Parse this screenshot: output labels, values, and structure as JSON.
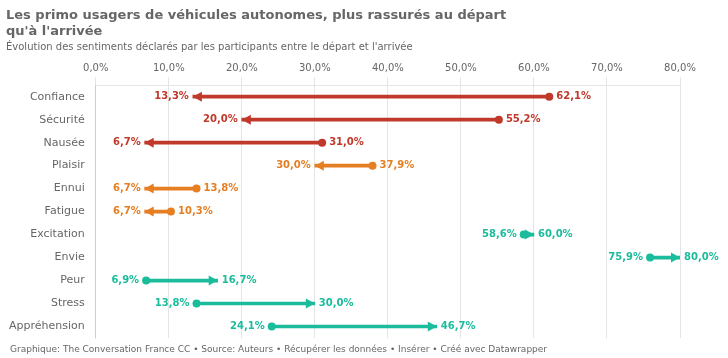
{
  "chart_data": {
    "type": "arrow",
    "orientation": "horizontal",
    "title": [
      "Les primo usagers de véhicules autonomes, plus rassurés au départ",
      "qu'à l'arrivée"
    ],
    "subtitle": "Évolution des sentiments déclarés par les participants entre le départ et l'arrivée",
    "annotations": [
      "Graphique: The Conversation France CC • Source: Auteurs • Récupérer les données • Insérer • Créé avec Datawrapper"
    ],
    "categories": [
      "Confiance",
      "Sécurité",
      "Nausée",
      "Plaisir",
      "Ennui",
      "Fatigue",
      "Excitation",
      "Envie",
      "Peur",
      "Stress",
      "Appréhension"
    ],
    "values": [
      [
        62.1,
        13.3
      ],
      [
        55.2,
        20.0
      ],
      [
        31.0,
        6.7
      ],
      [
        37.9,
        30.0
      ],
      [
        13.8,
        6.7
      ],
      [
        10.3,
        6.7
      ],
      [
        58.6,
        60.0
      ],
      [
        75.9,
        80.0
      ],
      [
        6.9,
        16.7
      ],
      [
        13.8,
        30.0
      ],
      [
        24.1,
        46.7
      ]
    ],
    "value_labels": [
      [
        "62,1%",
        "13,3%"
      ],
      [
        "55,2%",
        "20,0%"
      ],
      [
        "31,0%",
        "6,7%"
      ],
      [
        "37,9%",
        "30,0%"
      ],
      [
        "13,8%",
        "6,7%"
      ],
      [
        "10,3%",
        "6,7%"
      ],
      [
        "58,6%",
        "60,0%"
      ],
      [
        "75,9%",
        "80,0%"
      ],
      [
        "6,9%",
        "16,7%"
      ],
      [
        "13,8%",
        "30,0%"
      ],
      [
        "24,1%",
        "46,7%"
      ]
    ],
    "colors": [
      "#c0392b",
      "#c0392b",
      "#c0392b",
      "#e67e22",
      "#e67e22",
      "#e67e22",
      "#1abc9c",
      "#1abc9c",
      "#1abc9c",
      "#1abc9c",
      "#1abc9c"
    ],
    "data_labels": true,
    "xlim": [
      0,
      80
    ],
    "xticks": [
      {
        "value": 0,
        "label": "0,0%"
      },
      {
        "value": 10,
        "label": "10,0%"
      },
      {
        "value": 20,
        "label": "20,0%"
      },
      {
        "value": 30,
        "label": "30,0%"
      },
      {
        "value": 40,
        "label": "40,0%"
      },
      {
        "value": 50,
        "label": "50,0%"
      },
      {
        "value": 60,
        "label": "60,0%"
      },
      {
        "value": 70,
        "label": "70,0%"
      },
      {
        "value": 80,
        "label": "80,0%"
      }
    ],
    "grid": true
  }
}
